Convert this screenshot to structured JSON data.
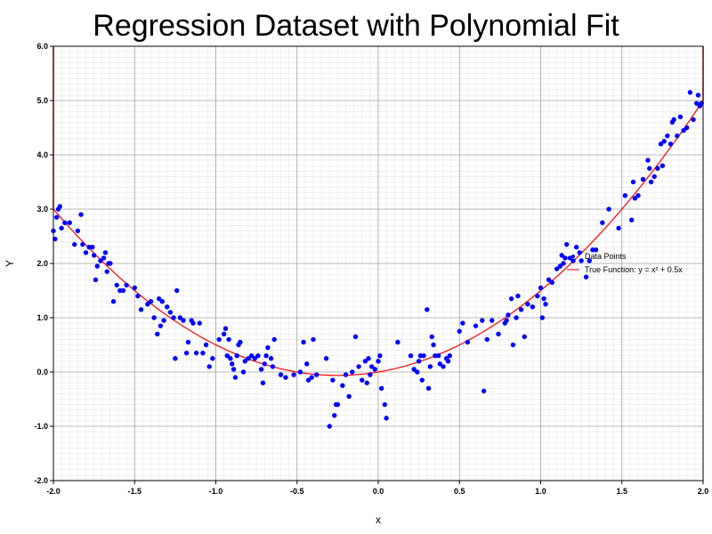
{
  "chart_data": {
    "type": "scatter",
    "title": "Regression Dataset with Polynomial Fit",
    "xlabel": "x",
    "ylabel": "Y",
    "xlim": [
      -2.0,
      2.0
    ],
    "ylim": [
      -2.0,
      6.0
    ],
    "x_ticks": [
      "-2.0",
      "-1.5",
      "-1.0",
      "-0.5",
      "0.0",
      "0.5",
      "1.0",
      "1.5",
      "2.0"
    ],
    "y_ticks": [
      "-2.0",
      "-1.0",
      "0.0",
      "1.0",
      "2.0",
      "3.0",
      "4.0",
      "5.0",
      "6.0"
    ],
    "grid": true,
    "legend_position": "right-center",
    "series": [
      {
        "name": "Data Points",
        "type": "scatter",
        "color": "#0000ff",
        "points": [
          [
            -2.0,
            2.6
          ],
          [
            -1.99,
            2.45
          ],
          [
            -1.98,
            2.85
          ],
          [
            -1.97,
            3.0
          ],
          [
            -1.96,
            3.05
          ],
          [
            -1.95,
            2.65
          ],
          [
            -1.93,
            2.75
          ],
          [
            -1.9,
            2.75
          ],
          [
            -1.87,
            2.35
          ],
          [
            -1.85,
            2.6
          ],
          [
            -1.83,
            2.9
          ],
          [
            -1.82,
            2.35
          ],
          [
            -1.8,
            2.2
          ],
          [
            -1.78,
            2.3
          ],
          [
            -1.76,
            2.3
          ],
          [
            -1.75,
            2.15
          ],
          [
            -1.74,
            1.7
          ],
          [
            -1.73,
            1.95
          ],
          [
            -1.71,
            2.05
          ],
          [
            -1.69,
            2.1
          ],
          [
            -1.68,
            2.2
          ],
          [
            -1.67,
            1.85
          ],
          [
            -1.66,
            2.0
          ],
          [
            -1.65,
            2.0
          ],
          [
            -1.63,
            1.3
          ],
          [
            -1.61,
            1.6
          ],
          [
            -1.59,
            1.5
          ],
          [
            -1.57,
            1.5
          ],
          [
            -1.55,
            1.6
          ],
          [
            -1.5,
            1.55
          ],
          [
            -1.48,
            1.4
          ],
          [
            -1.46,
            1.15
          ],
          [
            -1.42,
            1.25
          ],
          [
            -1.4,
            1.3
          ],
          [
            -1.38,
            1.0
          ],
          [
            -1.36,
            0.7
          ],
          [
            -1.35,
            1.35
          ],
          [
            -1.34,
            0.85
          ],
          [
            -1.33,
            1.3
          ],
          [
            -1.32,
            0.95
          ],
          [
            -1.3,
            1.2
          ],
          [
            -1.28,
            1.1
          ],
          [
            -1.26,
            1.0
          ],
          [
            -1.25,
            0.25
          ],
          [
            -1.24,
            1.5
          ],
          [
            -1.22,
            1.0
          ],
          [
            -1.2,
            0.95
          ],
          [
            -1.18,
            0.35
          ],
          [
            -1.17,
            0.55
          ],
          [
            -1.15,
            0.95
          ],
          [
            -1.14,
            0.9
          ],
          [
            -1.12,
            0.35
          ],
          [
            -1.1,
            0.9
          ],
          [
            -1.08,
            0.35
          ],
          [
            -1.06,
            0.5
          ],
          [
            -1.04,
            0.1
          ],
          [
            -1.02,
            0.25
          ],
          [
            -0.98,
            0.6
          ],
          [
            -0.95,
            0.7
          ],
          [
            -0.94,
            0.8
          ],
          [
            -0.93,
            0.3
          ],
          [
            -0.92,
            0.6
          ],
          [
            -0.91,
            0.25
          ],
          [
            -0.9,
            0.15
          ],
          [
            -0.89,
            0.05
          ],
          [
            -0.88,
            -0.1
          ],
          [
            -0.87,
            0.3
          ],
          [
            -0.86,
            0.5
          ],
          [
            -0.85,
            0.55
          ],
          [
            -0.83,
            0.0
          ],
          [
            -0.82,
            0.2
          ],
          [
            -0.8,
            0.25
          ],
          [
            -0.78,
            0.3
          ],
          [
            -0.76,
            0.25
          ],
          [
            -0.74,
            0.3
          ],
          [
            -0.72,
            0.05
          ],
          [
            -0.71,
            -0.2
          ],
          [
            -0.7,
            0.15
          ],
          [
            -0.69,
            0.3
          ],
          [
            -0.68,
            0.45
          ],
          [
            -0.66,
            0.25
          ],
          [
            -0.65,
            0.1
          ],
          [
            -0.64,
            0.6
          ],
          [
            -0.6,
            -0.05
          ],
          [
            -0.57,
            -0.1
          ],
          [
            -0.52,
            -0.05
          ],
          [
            -0.48,
            0.0
          ],
          [
            -0.46,
            0.55
          ],
          [
            -0.44,
            0.15
          ],
          [
            -0.43,
            -0.15
          ],
          [
            -0.41,
            -0.1
          ],
          [
            -0.4,
            0.6
          ],
          [
            -0.38,
            -0.05
          ],
          [
            -0.32,
            0.25
          ],
          [
            -0.3,
            -1.0
          ],
          [
            -0.28,
            -0.15
          ],
          [
            -0.27,
            -0.8
          ],
          [
            -0.26,
            -0.6
          ],
          [
            -0.25,
            -0.6
          ],
          [
            -0.22,
            -0.25
          ],
          [
            -0.2,
            -0.05
          ],
          [
            -0.18,
            -0.45
          ],
          [
            -0.16,
            0.0
          ],
          [
            -0.14,
            0.65
          ],
          [
            -0.12,
            0.1
          ],
          [
            -0.1,
            -0.15
          ],
          [
            -0.08,
            0.2
          ],
          [
            -0.07,
            -0.2
          ],
          [
            -0.06,
            0.25
          ],
          [
            -0.05,
            -0.05
          ],
          [
            -0.04,
            0.1
          ],
          [
            -0.02,
            0.05
          ],
          [
            0.0,
            0.2
          ],
          [
            0.01,
            0.3
          ],
          [
            0.02,
            -0.3
          ],
          [
            0.04,
            -0.6
          ],
          [
            0.05,
            -0.85
          ],
          [
            0.12,
            0.55
          ],
          [
            0.2,
            0.3
          ],
          [
            0.22,
            0.05
          ],
          [
            0.24,
            0.0
          ],
          [
            0.25,
            0.2
          ],
          [
            0.26,
            0.3
          ],
          [
            0.27,
            -0.15
          ],
          [
            0.28,
            0.3
          ],
          [
            0.3,
            1.15
          ],
          [
            0.31,
            -0.3
          ],
          [
            0.32,
            0.1
          ],
          [
            0.33,
            0.65
          ],
          [
            0.34,
            0.5
          ],
          [
            0.35,
            0.3
          ],
          [
            0.37,
            0.3
          ],
          [
            0.38,
            0.15
          ],
          [
            0.4,
            0.1
          ],
          [
            0.42,
            0.25
          ],
          [
            0.43,
            0.2
          ],
          [
            0.44,
            0.3
          ],
          [
            0.5,
            0.75
          ],
          [
            0.52,
            0.9
          ],
          [
            0.55,
            0.55
          ],
          [
            0.6,
            0.85
          ],
          [
            0.64,
            0.95
          ],
          [
            0.65,
            -0.35
          ],
          [
            0.67,
            0.6
          ],
          [
            0.7,
            0.95
          ],
          [
            0.74,
            0.7
          ],
          [
            0.78,
            0.9
          ],
          [
            0.79,
            0.95
          ],
          [
            0.8,
            1.05
          ],
          [
            0.82,
            1.35
          ],
          [
            0.83,
            0.5
          ],
          [
            0.85,
            1.0
          ],
          [
            0.86,
            1.4
          ],
          [
            0.88,
            1.15
          ],
          [
            0.9,
            0.65
          ],
          [
            0.92,
            1.25
          ],
          [
            0.95,
            1.2
          ],
          [
            0.98,
            1.4
          ],
          [
            1.0,
            1.55
          ],
          [
            1.01,
            1.0
          ],
          [
            1.02,
            1.35
          ],
          [
            1.03,
            1.25
          ],
          [
            1.05,
            1.7
          ],
          [
            1.07,
            1.65
          ],
          [
            1.1,
            1.9
          ],
          [
            1.12,
            1.95
          ],
          [
            1.13,
            2.15
          ],
          [
            1.14,
            2.0
          ],
          [
            1.15,
            2.1
          ],
          [
            1.16,
            2.35
          ],
          [
            1.18,
            2.1
          ],
          [
            1.2,
            2.05
          ],
          [
            1.22,
            2.3
          ],
          [
            1.24,
            2.2
          ],
          [
            1.25,
            2.05
          ],
          [
            1.28,
            1.75
          ],
          [
            1.3,
            2.05
          ],
          [
            1.32,
            2.25
          ],
          [
            1.34,
            2.25
          ],
          [
            1.38,
            2.75
          ],
          [
            1.42,
            3.0
          ],
          [
            1.48,
            2.65
          ],
          [
            1.52,
            3.25
          ],
          [
            1.56,
            2.8
          ],
          [
            1.57,
            3.5
          ],
          [
            1.58,
            3.2
          ],
          [
            1.6,
            3.25
          ],
          [
            1.63,
            3.55
          ],
          [
            1.66,
            3.9
          ],
          [
            1.67,
            3.75
          ],
          [
            1.68,
            3.5
          ],
          [
            1.7,
            3.6
          ],
          [
            1.72,
            3.75
          ],
          [
            1.74,
            4.2
          ],
          [
            1.75,
            3.8
          ],
          [
            1.76,
            4.25
          ],
          [
            1.78,
            4.35
          ],
          [
            1.8,
            4.2
          ],
          [
            1.81,
            4.6
          ],
          [
            1.82,
            4.65
          ],
          [
            1.84,
            4.35
          ],
          [
            1.86,
            4.7
          ],
          [
            1.88,
            4.45
          ],
          [
            1.9,
            4.5
          ],
          [
            1.92,
            5.15
          ],
          [
            1.94,
            4.65
          ],
          [
            1.96,
            4.95
          ],
          [
            1.97,
            5.1
          ],
          [
            1.98,
            4.9
          ],
          [
            1.99,
            4.95
          ]
        ]
      },
      {
        "name": "True Function: y = x² + 0.5x",
        "type": "line",
        "color": "#ff0000",
        "function": "x^2 + 0.5x",
        "x_range": [
          -2.0,
          2.0
        ]
      }
    ]
  }
}
